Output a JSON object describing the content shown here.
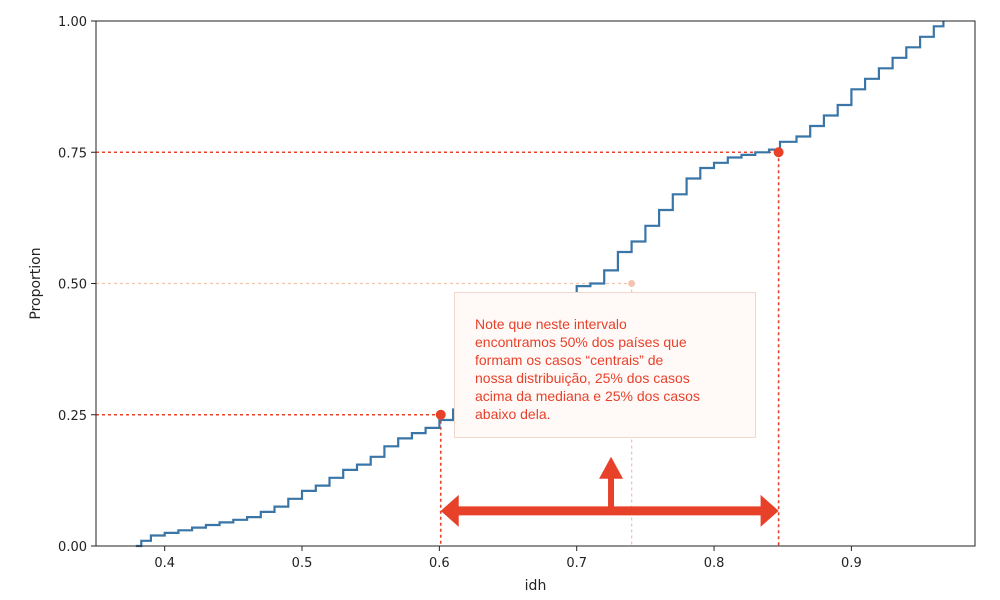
{
  "chart_data": {
    "type": "line",
    "xlabel": "idh",
    "ylabel": "Proportion",
    "xlim": [
      0.35,
      0.99
    ],
    "ylim": [
      0.0,
      1.0
    ],
    "xticks": [
      0.4,
      0.5,
      0.6,
      0.7,
      0.8,
      0.9
    ],
    "xtick_labels": [
      "0.4",
      "0.5",
      "0.6",
      "0.7",
      "0.8",
      "0.9"
    ],
    "yticks": [
      0.0,
      0.25,
      0.5,
      0.75,
      1.0
    ],
    "ytick_labels": [
      "0.00",
      "0.25",
      "0.50",
      "0.75",
      "1.00"
    ],
    "grid": false,
    "series": [
      {
        "color": "#3a75a8",
        "x": [
          0.379,
          0.383,
          0.39,
          0.4,
          0.41,
          0.42,
          0.43,
          0.44,
          0.45,
          0.46,
          0.47,
          0.48,
          0.49,
          0.5,
          0.51,
          0.52,
          0.53,
          0.54,
          0.55,
          0.56,
          0.57,
          0.58,
          0.59,
          0.6,
          0.61,
          0.62,
          0.63,
          0.64,
          0.65,
          0.66,
          0.67,
          0.68,
          0.69,
          0.7,
          0.71,
          0.72,
          0.73,
          0.74,
          0.75,
          0.76,
          0.77,
          0.78,
          0.79,
          0.8,
          0.81,
          0.82,
          0.83,
          0.84,
          0.848,
          0.86,
          0.87,
          0.88,
          0.89,
          0.9,
          0.91,
          0.92,
          0.93,
          0.94,
          0.95,
          0.96,
          0.967
        ],
        "y": [
          0.0,
          0.01,
          0.02,
          0.025,
          0.03,
          0.035,
          0.04,
          0.045,
          0.05,
          0.055,
          0.065,
          0.075,
          0.09,
          0.105,
          0.115,
          0.13,
          0.145,
          0.155,
          0.17,
          0.19,
          0.205,
          0.215,
          0.225,
          0.24,
          0.26,
          0.28,
          0.3,
          0.33,
          0.36,
          0.39,
          0.42,
          0.44,
          0.47,
          0.495,
          0.5,
          0.525,
          0.56,
          0.58,
          0.61,
          0.64,
          0.67,
          0.7,
          0.72,
          0.73,
          0.74,
          0.745,
          0.75,
          0.755,
          0.77,
          0.78,
          0.8,
          0.82,
          0.84,
          0.87,
          0.89,
          0.91,
          0.93,
          0.95,
          0.97,
          0.99,
          1.0
        ]
      }
    ],
    "annotations": {
      "color": "#e8412a",
      "faint_color": "#f5c4b0",
      "points": [
        {
          "x": 0.601,
          "y": 0.25
        },
        {
          "x": 0.74,
          "y": 0.5
        },
        {
          "x": 0.847,
          "y": 0.75
        }
      ],
      "interval_arrow": {
        "x_start": 0.601,
        "x_end": 0.847,
        "y": 0.067
      },
      "up_arrow": {
        "x": 0.725,
        "y_from": 0.075,
        "y_to": 0.17
      },
      "text": "Note que neste intervalo\nencontramos 50% dos países que\nformam os casos “centrais” de\nnossa distribuição, 25% dos casos\nacima da mediana e 25% dos casos\nabaixo dela."
    }
  }
}
